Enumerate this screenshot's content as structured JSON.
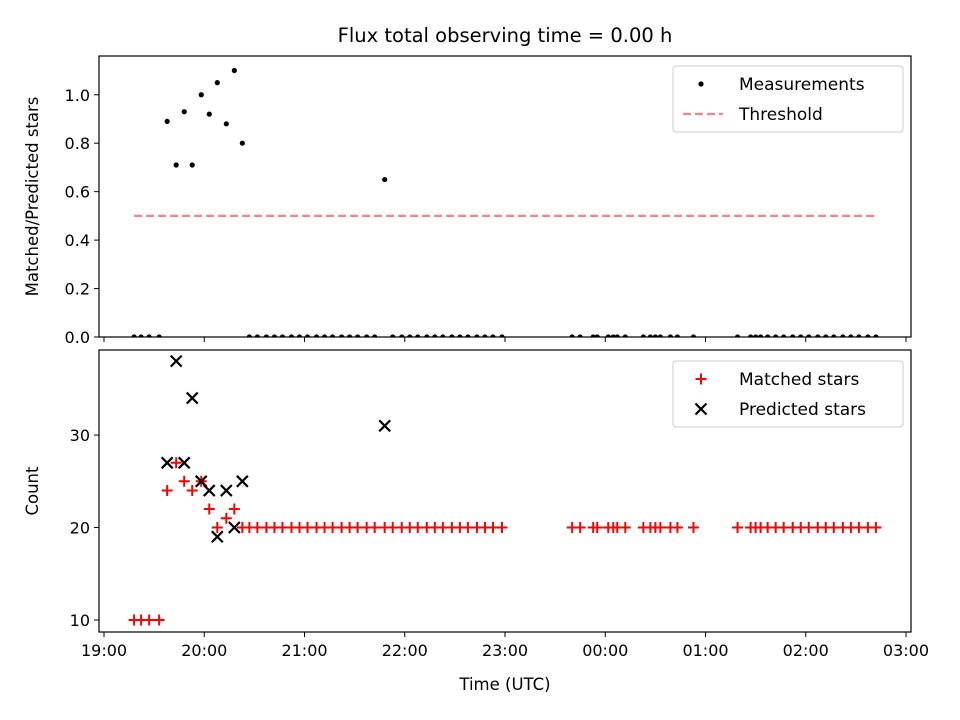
{
  "chart_data": {
    "title": "Flux total observing time = 0.00 h",
    "xlabel": "Time (UTC)",
    "x_unit": "hours of day (UTC), values past 24 wrap to next day",
    "xlim": [
      18.95,
      27.05
    ],
    "x_ticks": [
      19,
      20,
      21,
      22,
      23,
      24,
      25,
      26,
      27
    ],
    "x_tick_labels": [
      "19:00",
      "20:00",
      "21:00",
      "22:00",
      "23:00",
      "00:00",
      "01:00",
      "02:00",
      "03:00"
    ],
    "panels": [
      {
        "type": "scatter",
        "ylabel": "Matched/Predicted stars",
        "ylim": [
          0,
          1.16
        ],
        "y_ticks": [
          0.0,
          0.2,
          0.4,
          0.6,
          0.8,
          1.0
        ],
        "y_tick_labels": [
          "0.0",
          "0.2",
          "0.4",
          "0.6",
          "0.8",
          "1.0"
        ],
        "legend_position": "upper-right",
        "legend": [
          "Measurements",
          "Threshold"
        ],
        "series": [
          {
            "name": "Measurements",
            "kind": "dots",
            "color": "#000000",
            "x": [
              19.3,
              19.37,
              19.45,
              19.55,
              19.63,
              19.72,
              19.8,
              19.88,
              19.97,
              20.05,
              20.13,
              20.22,
              20.3,
              20.38,
              20.45,
              20.53,
              20.62,
              20.7,
              20.78,
              20.87,
              20.95,
              21.03,
              21.12,
              21.2,
              21.28,
              21.37,
              21.45,
              21.53,
              21.62,
              21.7,
              21.8,
              21.88,
              21.97,
              22.05,
              22.13,
              22.22,
              22.3,
              22.38,
              22.47,
              22.55,
              22.63,
              22.72,
              22.8,
              22.88,
              22.97,
              23.67,
              23.75,
              23.88,
              23.92,
              24.03,
              24.08,
              24.12,
              24.2,
              24.38,
              24.45,
              24.5,
              24.55,
              24.65,
              24.72,
              24.88,
              25.32,
              25.45,
              25.5,
              25.55,
              25.62,
              25.7,
              25.78,
              25.87,
              25.95,
              26.03,
              26.12,
              26.2,
              26.28,
              26.37,
              26.45,
              26.53,
              26.62,
              26.7
            ],
            "y": [
              0,
              0,
              0,
              0,
              0.89,
              0.71,
              0.93,
              0.71,
              1.0,
              0.92,
              1.05,
              0.88,
              1.1,
              0.8,
              0,
              0,
              0,
              0,
              0,
              0,
              0,
              0,
              0,
              0,
              0,
              0,
              0,
              0,
              0,
              0,
              0.65,
              0,
              0,
              0,
              0,
              0,
              0,
              0,
              0,
              0,
              0,
              0,
              0,
              0,
              0,
              0,
              0,
              0,
              0,
              0,
              0,
              0,
              0,
              0,
              0,
              0,
              0,
              0,
              0,
              0,
              0,
              0,
              0,
              0,
              0,
              0,
              0,
              0,
              0,
              0,
              0,
              0,
              0,
              0,
              0,
              0,
              0,
              0
            ]
          },
          {
            "name": "Threshold",
            "kind": "dashed-line",
            "color": "#ff8080",
            "x": [
              19.3,
              26.7
            ],
            "y": [
              0.5,
              0.5
            ]
          }
        ]
      },
      {
        "type": "scatter",
        "ylabel": "Count",
        "ylim": [
          8.7,
          39.2
        ],
        "y_ticks": [
          10,
          20,
          30
        ],
        "y_tick_labels": [
          "10",
          "20",
          "30"
        ],
        "legend_position": "upper-right",
        "legend": [
          "Matched stars",
          "Predicted stars"
        ],
        "series": [
          {
            "name": "Matched stars",
            "marker": "plus",
            "color": "#ff0000",
            "x": [
              19.3,
              19.37,
              19.45,
              19.55,
              19.63,
              19.72,
              19.8,
              19.88,
              19.97,
              20.05,
              20.13,
              20.22,
              20.3,
              20.38,
              20.45,
              20.53,
              20.62,
              20.7,
              20.78,
              20.87,
              20.95,
              21.03,
              21.12,
              21.2,
              21.28,
              21.37,
              21.45,
              21.53,
              21.62,
              21.7,
              21.8,
              21.88,
              21.97,
              22.05,
              22.13,
              22.22,
              22.3,
              22.38,
              22.47,
              22.55,
              22.63,
              22.72,
              22.8,
              22.88,
              22.97,
              23.67,
              23.75,
              23.88,
              23.92,
              24.03,
              24.08,
              24.12,
              24.2,
              24.38,
              24.45,
              24.5,
              24.55,
              24.65,
              24.72,
              24.88,
              25.32,
              25.45,
              25.5,
              25.55,
              25.62,
              25.7,
              25.78,
              25.87,
              25.95,
              26.03,
              26.12,
              26.2,
              26.28,
              26.37,
              26.45,
              26.53,
              26.62,
              26.7
            ],
            "y": [
              10,
              10,
              10,
              10,
              24,
              27,
              25,
              24,
              25,
              22,
              20,
              21,
              22,
              20,
              20,
              20,
              20,
              20,
              20,
              20,
              20,
              20,
              20,
              20,
              20,
              20,
              20,
              20,
              20,
              20,
              20,
              20,
              20,
              20,
              20,
              20,
              20,
              20,
              20,
              20,
              20,
              20,
              20,
              20,
              20,
              20,
              20,
              20,
              20,
              20,
              20,
              20,
              20,
              20,
              20,
              20,
              20,
              20,
              20,
              20,
              20,
              20,
              20,
              20,
              20,
              20,
              20,
              20,
              20,
              20,
              20,
              20,
              20,
              20,
              20,
              20,
              20,
              20
            ]
          },
          {
            "name": "Predicted stars",
            "marker": "x",
            "color": "#000000",
            "x": [
              19.63,
              19.72,
              19.8,
              19.88,
              19.97,
              20.05,
              20.13,
              20.22,
              20.3,
              20.38,
              21.8
            ],
            "y": [
              27,
              38,
              27,
              34,
              25,
              24,
              19,
              24,
              20,
              25,
              31
            ]
          }
        ]
      }
    ]
  }
}
